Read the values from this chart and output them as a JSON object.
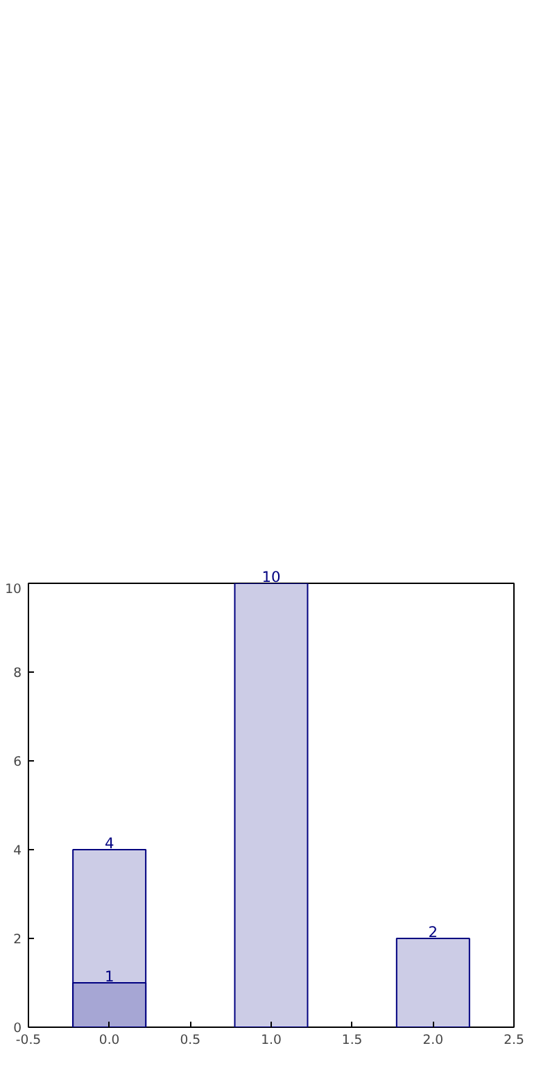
{
  "chart_data": {
    "type": "bar",
    "x": [
      0,
      1,
      2
    ],
    "series": [
      {
        "color": "#cccce6",
        "values": [
          4,
          10,
          2
        ]
      },
      {
        "color": "#a6a6d4",
        "values": [
          1,
          null,
          null
        ]
      }
    ],
    "xlim": [
      -0.5,
      2.5
    ],
    "xticks": [
      -0.5,
      {
        "value": 0,
        "label": "0.0"
      },
      0.5,
      {
        "value": 1,
        "label": "1.0"
      },
      1.5,
      {
        "value": 2,
        "label": "2.0"
      },
      2.5
    ],
    "ylim": [
      0,
      10
    ],
    "yticks": [
      0,
      2,
      4,
      6,
      8,
      10
    ],
    "data_labels": true,
    "grid": false
  }
}
